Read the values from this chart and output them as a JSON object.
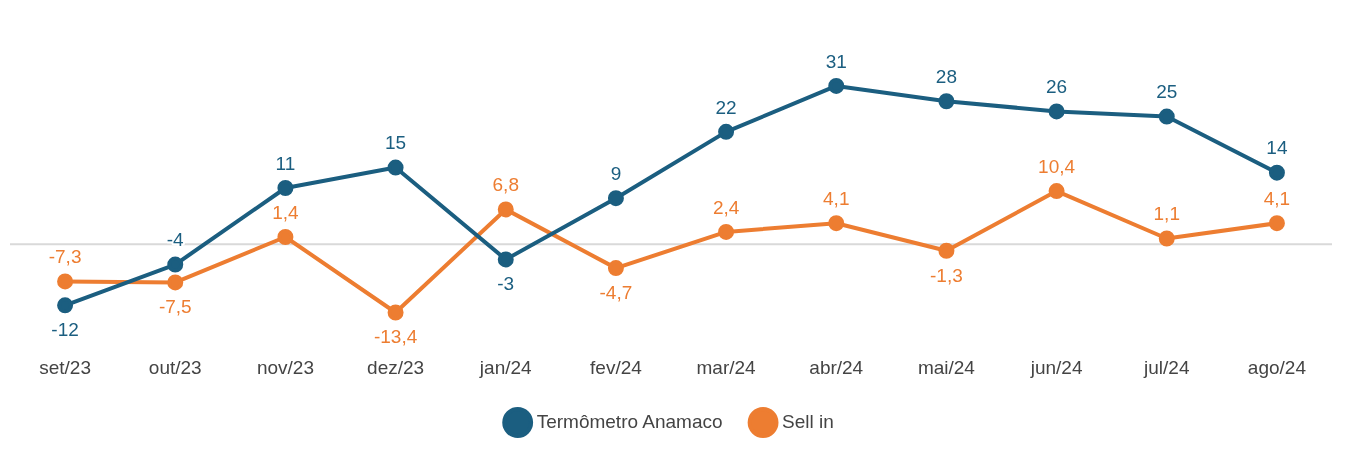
{
  "chart_data": {
    "type": "line",
    "categories": [
      "set/23",
      "out/23",
      "nov/23",
      "dez/23",
      "jan/24",
      "fev/24",
      "mar/24",
      "abr/24",
      "mai/24",
      "jun/24",
      "jul/24",
      "ago/24"
    ],
    "series": [
      {
        "name": "Termômetro Anamaco",
        "color": "#1b5e80",
        "values": [
          -12,
          -4,
          11,
          15,
          -3,
          9,
          22,
          31,
          28,
          26,
          25,
          14
        ],
        "value_labels": [
          "-12",
          "-4",
          "11",
          "15",
          "-3",
          "9",
          "22",
          "31",
          "28",
          "26",
          "25",
          "14"
        ]
      },
      {
        "name": "Sell in",
        "color": "#ed7d31",
        "values": [
          -7.3,
          -7.5,
          1.4,
          -13.4,
          6.8,
          -4.7,
          2.4,
          4.1,
          -1.3,
          10.4,
          1.1,
          4.1
        ],
        "value_labels": [
          "-7,3",
          "-7,5",
          "1,4",
          "-13,4",
          "6,8",
          "-4,7",
          "2,4",
          "4,1",
          "-1,3",
          "10,4",
          "1,1",
          "4,1"
        ]
      }
    ],
    "legend": "bottom",
    "marker": "circle",
    "line_style": "solid",
    "grid": false
  }
}
